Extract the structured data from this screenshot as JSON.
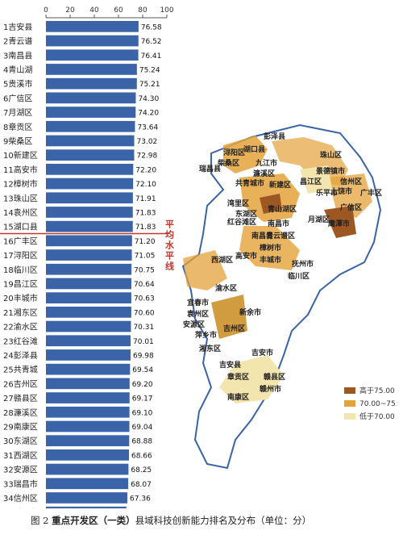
{
  "caption": {
    "prefix": "图 2",
    "bold": "重点开发区（一类）",
    "rest": "县域科技创新能力排名及分布（单位：分）"
  },
  "average_line_label": "平均水平线",
  "map": {
    "labels": [
      "彭泽县",
      "湖口县",
      "浔阳区",
      "柴桑区",
      "九江市",
      "濂溪区",
      "瑞昌县",
      "共青城市",
      "珠山区",
      "景德镇市",
      "昌江区",
      "乐平市",
      "信州区",
      "广丰区",
      "上饶市",
      "广信区",
      "湾里区",
      "东湖区",
      "青山湖区",
      "红谷滩区",
      "南昌市",
      "青云谱区",
      "新建区",
      "月湖区",
      "鹰潭市",
      "高安市",
      "丰城市",
      "抚州市",
      "临川区",
      "樟树市",
      "西湖区",
      "南昌县",
      "渝水区",
      "宜春市",
      "袁州区",
      "新余市",
      "安源区",
      "萍乡市",
      "湘东区",
      "吉州区",
      "吉安市",
      "吉安县",
      "赣县区",
      "章贡区",
      "赣州市",
      "南康区"
    ],
    "legend": [
      "高于75.00",
      "70.00~75.00",
      "低于70.00"
    ]
  },
  "chart_data": {
    "type": "bar",
    "orientation": "horizontal",
    "xlim": [
      0,
      100
    ],
    "xticks": [
      0,
      20,
      40,
      60,
      80,
      100
    ],
    "average_after_rank": 15,
    "bar_color": "#3a63a8",
    "categories": [
      "1吉安县",
      "2青云谱",
      "3南昌县",
      "4青山湖",
      "5贵溪市",
      "6广信区",
      "7月湖区",
      "8章贡区",
      "9柴桑区",
      "10新建区",
      "11高安市",
      "12樟树市",
      "13珠山区",
      "14袁州区",
      "15湖口县",
      "16广丰区",
      "17浔阳区",
      "18临川区",
      "19昌江区",
      "20丰城市",
      "21湘东区",
      "22渝水区",
      "23红谷滩",
      "24彭泽县",
      "25共青城",
      "26吉州区",
      "27赣县区",
      "28濂溪区",
      "29南康区",
      "30东湖区",
      "31西湖区",
      "32安源区",
      "33瑞昌市",
      "34信州区",
      "35乐平市"
    ],
    "values": [
      76.58,
      76.52,
      76.41,
      75.24,
      75.21,
      74.3,
      74.2,
      73.64,
      73.02,
      72.98,
      72.2,
      72.1,
      71.91,
      71.83,
      71.83,
      71.2,
      71.05,
      70.75,
      70.64,
      70.63,
      70.6,
      70.31,
      70.01,
      69.98,
      69.54,
      69.2,
      69.17,
      69.1,
      69.04,
      68.88,
      68.66,
      68.25,
      68.07,
      67.36,
      66.52
    ],
    "value_labels": [
      "76.58",
      "76.52",
      "76.41",
      "75.24",
      "75.21",
      "74.30",
      "74.20",
      "73.64",
      "73.02",
      "72.98",
      "72.20",
      "72.10",
      "71.91",
      "71.83",
      "71.83",
      "71.20",
      "71.05",
      "70.75",
      "70.64",
      "70.63",
      "70.60",
      "70.31",
      "70.01",
      "69.98",
      "69.54",
      "69.20",
      "69.17",
      "69.10",
      "69.04",
      "68.88",
      "68.66",
      "68.25",
      "68.07",
      "67.36",
      "66.52"
    ]
  }
}
